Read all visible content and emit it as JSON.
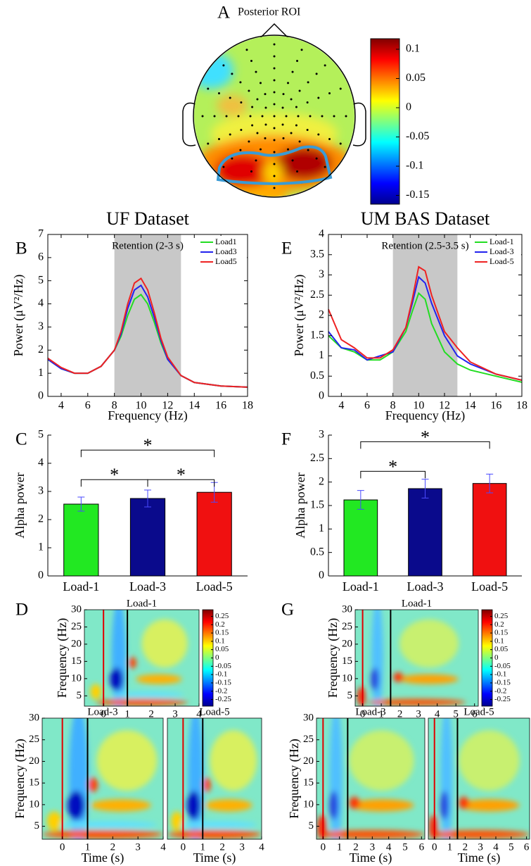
{
  "chart_data": [
    {
      "type": "topomap",
      "label": "A",
      "title": "Posterior ROI",
      "clim": [
        -0.165,
        0.118
      ],
      "cticks": [
        0.1,
        0.05,
        0,
        -0.05,
        -0.1,
        -0.15
      ]
    },
    {
      "type": "line",
      "label": "B",
      "group_title": "UF Dataset",
      "title": "Retention (2-3 s)",
      "xlabel": "Frequency (Hz)",
      "ylabel": "Power (μV²/Hz)",
      "xlim": [
        3,
        18
      ],
      "xticks": [
        4,
        6,
        8,
        10,
        12,
        14,
        16,
        18
      ],
      "ylim": [
        0,
        7
      ],
      "yticks": [
        0,
        1,
        2,
        3,
        4,
        5,
        6,
        7
      ],
      "shade": [
        8,
        13
      ],
      "legend": "upper right",
      "x": [
        3,
        4,
        5,
        6,
        7,
        8,
        8.5,
        9,
        9.5,
        10,
        10.5,
        11,
        11.5,
        12,
        13,
        14,
        16,
        18
      ],
      "series": [
        {
          "name": "Load1",
          "color": "#22dd22",
          "values": [
            1.6,
            1.2,
            1.0,
            1.0,
            1.3,
            2.0,
            2.6,
            3.5,
            4.2,
            4.4,
            4.0,
            3.2,
            2.3,
            1.6,
            0.9,
            0.6,
            0.45,
            0.4
          ]
        },
        {
          "name": "Load3",
          "color": "#2222ee",
          "values": [
            1.6,
            1.2,
            1.0,
            1.0,
            1.3,
            2.0,
            2.7,
            3.8,
            4.6,
            4.8,
            4.3,
            3.4,
            2.4,
            1.6,
            0.9,
            0.6,
            0.45,
            0.4
          ]
        },
        {
          "name": "Load5",
          "color": "#ee2222",
          "values": [
            1.65,
            1.25,
            1.0,
            1.0,
            1.3,
            2.0,
            2.8,
            4.0,
            4.9,
            5.1,
            4.6,
            3.6,
            2.5,
            1.7,
            0.9,
            0.6,
            0.45,
            0.4
          ]
        }
      ]
    },
    {
      "type": "bar",
      "label": "C",
      "ylabel": "Alpha power",
      "categories": [
        "Load-1",
        "Load-3",
        "Load-5"
      ],
      "values": [
        2.55,
        2.75,
        2.97
      ],
      "errors": [
        0.25,
        0.3,
        0.35
      ],
      "colors": [
        "#22e822",
        "#0a0a8c",
        "#f01010"
      ],
      "ylim": [
        0,
        5
      ],
      "yticks": [
        0,
        1,
        2,
        3,
        4,
        5
      ],
      "significance": [
        {
          "from": "Load-1",
          "to": "Load-5",
          "label": "*"
        },
        {
          "from": "Load-1",
          "to": "Load-3",
          "label": "*"
        },
        {
          "from": "Load-3",
          "to": "Load-5",
          "label": "*"
        }
      ]
    },
    {
      "type": "heatmap",
      "label": "D",
      "panels": [
        "Load-1",
        "Load-3",
        "Load-5"
      ],
      "xlabel": "Time (s)",
      "ylabel": "Frequency (Hz)",
      "xlim": [
        -0.8,
        4
      ],
      "xticks": [
        0,
        1,
        2,
        3,
        4
      ],
      "ylim": [
        2,
        30
      ],
      "yticks": [
        5,
        10,
        15,
        20,
        25,
        30
      ],
      "clim": [
        -0.29,
        0.29
      ],
      "cticks": [
        0.25,
        0.2,
        0.15,
        0.1,
        0.05,
        0,
        -0.05,
        -0.1,
        -0.15,
        -0.2,
        -0.25
      ],
      "markers": [
        {
          "x": 0,
          "color": "#e00000"
        },
        {
          "x": 1,
          "color": "#000000"
        }
      ]
    },
    {
      "type": "line",
      "label": "E",
      "group_title": "UM BAS Dataset",
      "title": "Retention (2.5-3.5 s)",
      "xlabel": "Frequency (Hz)",
      "ylabel": "Power (μV²/Hz)",
      "xlim": [
        3,
        18
      ],
      "xticks": [
        4,
        6,
        8,
        10,
        12,
        14,
        16,
        18
      ],
      "ylim": [
        0,
        4
      ],
      "yticks": [
        0,
        0.5,
        1,
        1.5,
        2,
        2.5,
        3,
        3.5,
        4
      ],
      "shade": [
        8,
        13
      ],
      "legend": "upper right",
      "x": [
        3,
        4,
        5,
        6,
        7,
        8,
        9,
        9.5,
        10,
        10.5,
        11,
        12,
        13,
        14,
        16,
        18
      ],
      "series": [
        {
          "name": "Load-1",
          "color": "#22dd22",
          "values": [
            1.5,
            1.2,
            1.1,
            0.9,
            0.9,
            1.1,
            1.6,
            2.1,
            2.55,
            2.4,
            1.8,
            1.1,
            0.8,
            0.65,
            0.5,
            0.35
          ]
        },
        {
          "name": "Load-3",
          "color": "#2222ee",
          "values": [
            1.6,
            1.2,
            1.15,
            0.9,
            1.0,
            1.1,
            1.7,
            2.3,
            2.95,
            2.8,
            2.3,
            1.5,
            1.0,
            0.8,
            0.55,
            0.4
          ]
        },
        {
          "name": "Load-5",
          "color": "#ee2222",
          "values": [
            2.15,
            1.4,
            1.2,
            0.95,
            0.95,
            1.15,
            1.7,
            2.4,
            3.2,
            3.1,
            2.5,
            1.6,
            1.2,
            0.85,
            0.55,
            0.4
          ]
        }
      ]
    },
    {
      "type": "bar",
      "label": "F",
      "ylabel": "Alpha power",
      "categories": [
        "Load-1",
        "Load-3",
        "Load-5"
      ],
      "values": [
        1.62,
        1.86,
        1.97
      ],
      "errors": [
        0.2,
        0.2,
        0.2
      ],
      "colors": [
        "#22e822",
        "#0a0a8c",
        "#f01010"
      ],
      "ylim": [
        0,
        3
      ],
      "yticks": [
        0,
        0.5,
        1,
        1.5,
        2,
        2.5,
        3
      ],
      "significance": [
        {
          "from": "Load-1",
          "to": "Load-5",
          "label": "*"
        },
        {
          "from": "Load-1",
          "to": "Load-3",
          "label": "*"
        }
      ]
    },
    {
      "type": "heatmap",
      "label": "G",
      "panels": [
        "Load-1",
        "Load-3",
        "Load-5"
      ],
      "xlabel": "Time (s)",
      "ylabel": "Frequency (Hz)",
      "xlim": [
        -0.4,
        6.2
      ],
      "xticks": [
        0,
        1,
        2,
        3,
        4,
        5,
        6
      ],
      "ylim": [
        2,
        30
      ],
      "yticks": [
        5,
        10,
        15,
        20,
        25,
        30
      ],
      "clim": [
        -0.29,
        0.29
      ],
      "cticks": [
        0.25,
        0.2,
        0.15,
        0.1,
        0.05,
        0,
        -0.05,
        -0.1,
        -0.15,
        -0.2,
        -0.25
      ],
      "markers": [
        {
          "x": 0,
          "color": "#e00000"
        },
        {
          "x": 1.5,
          "color": "#000000"
        }
      ]
    }
  ]
}
